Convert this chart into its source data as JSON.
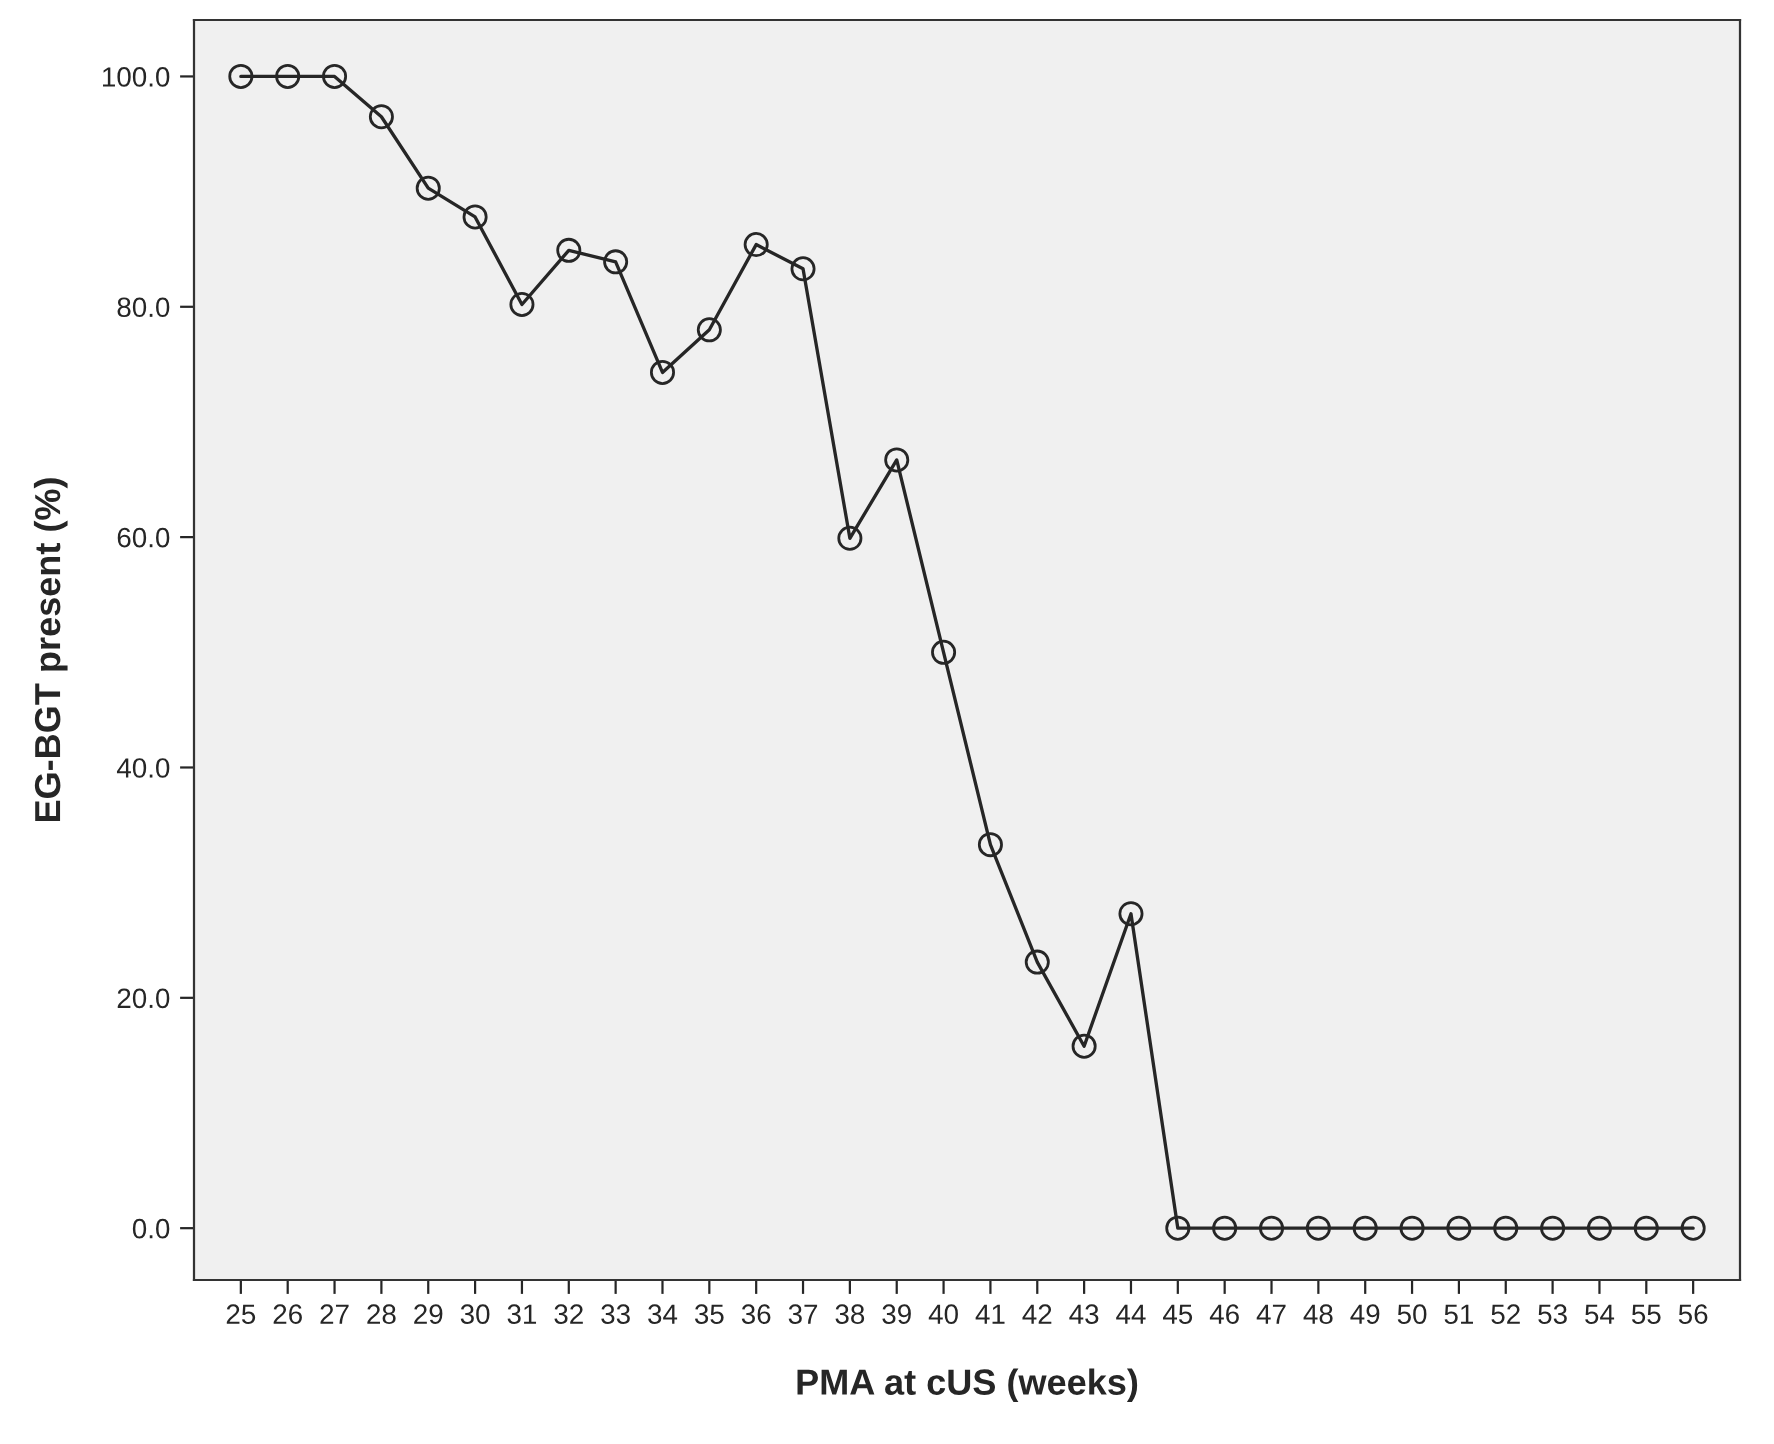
{
  "chart_data": {
    "type": "line",
    "xlabel": "PMA at cUS (weeks)",
    "ylabel": "EG-BGT present (%)",
    "categories": [
      "25",
      "26",
      "27",
      "28",
      "29",
      "30",
      "31",
      "32",
      "33",
      "34",
      "35",
      "36",
      "37",
      "38",
      "39",
      "40",
      "41",
      "42",
      "43",
      "44",
      "45",
      "46",
      "47",
      "48",
      "49",
      "50",
      "51",
      "52",
      "53",
      "54",
      "55",
      "56"
    ],
    "series": [
      {
        "color": "#262626",
        "values": [
          100,
          100,
          100,
          96.5,
          90.3,
          87.8,
          80.2,
          84.9,
          83.9,
          74.3,
          78.0,
          85.4,
          83.3,
          59.9,
          66.7,
          50.0,
          33.3,
          23.1,
          15.8,
          27.3,
          0,
          0,
          0,
          0,
          0,
          0,
          0,
          0,
          0,
          0,
          0,
          0
        ]
      }
    ],
    "ylim": [
      -4.5,
      104.9
    ],
    "yticks": [
      {
        "value": 0,
        "label": "0.0"
      },
      {
        "value": 20,
        "label": "20.0"
      },
      {
        "value": 40,
        "label": "40.0"
      },
      {
        "value": 60,
        "label": "60.0"
      },
      {
        "value": 80,
        "label": "80.0"
      },
      {
        "value": 100,
        "label": "100.0"
      }
    ],
    "grid": false,
    "legend": false,
    "marker": "circle",
    "line_style": "solid"
  }
}
